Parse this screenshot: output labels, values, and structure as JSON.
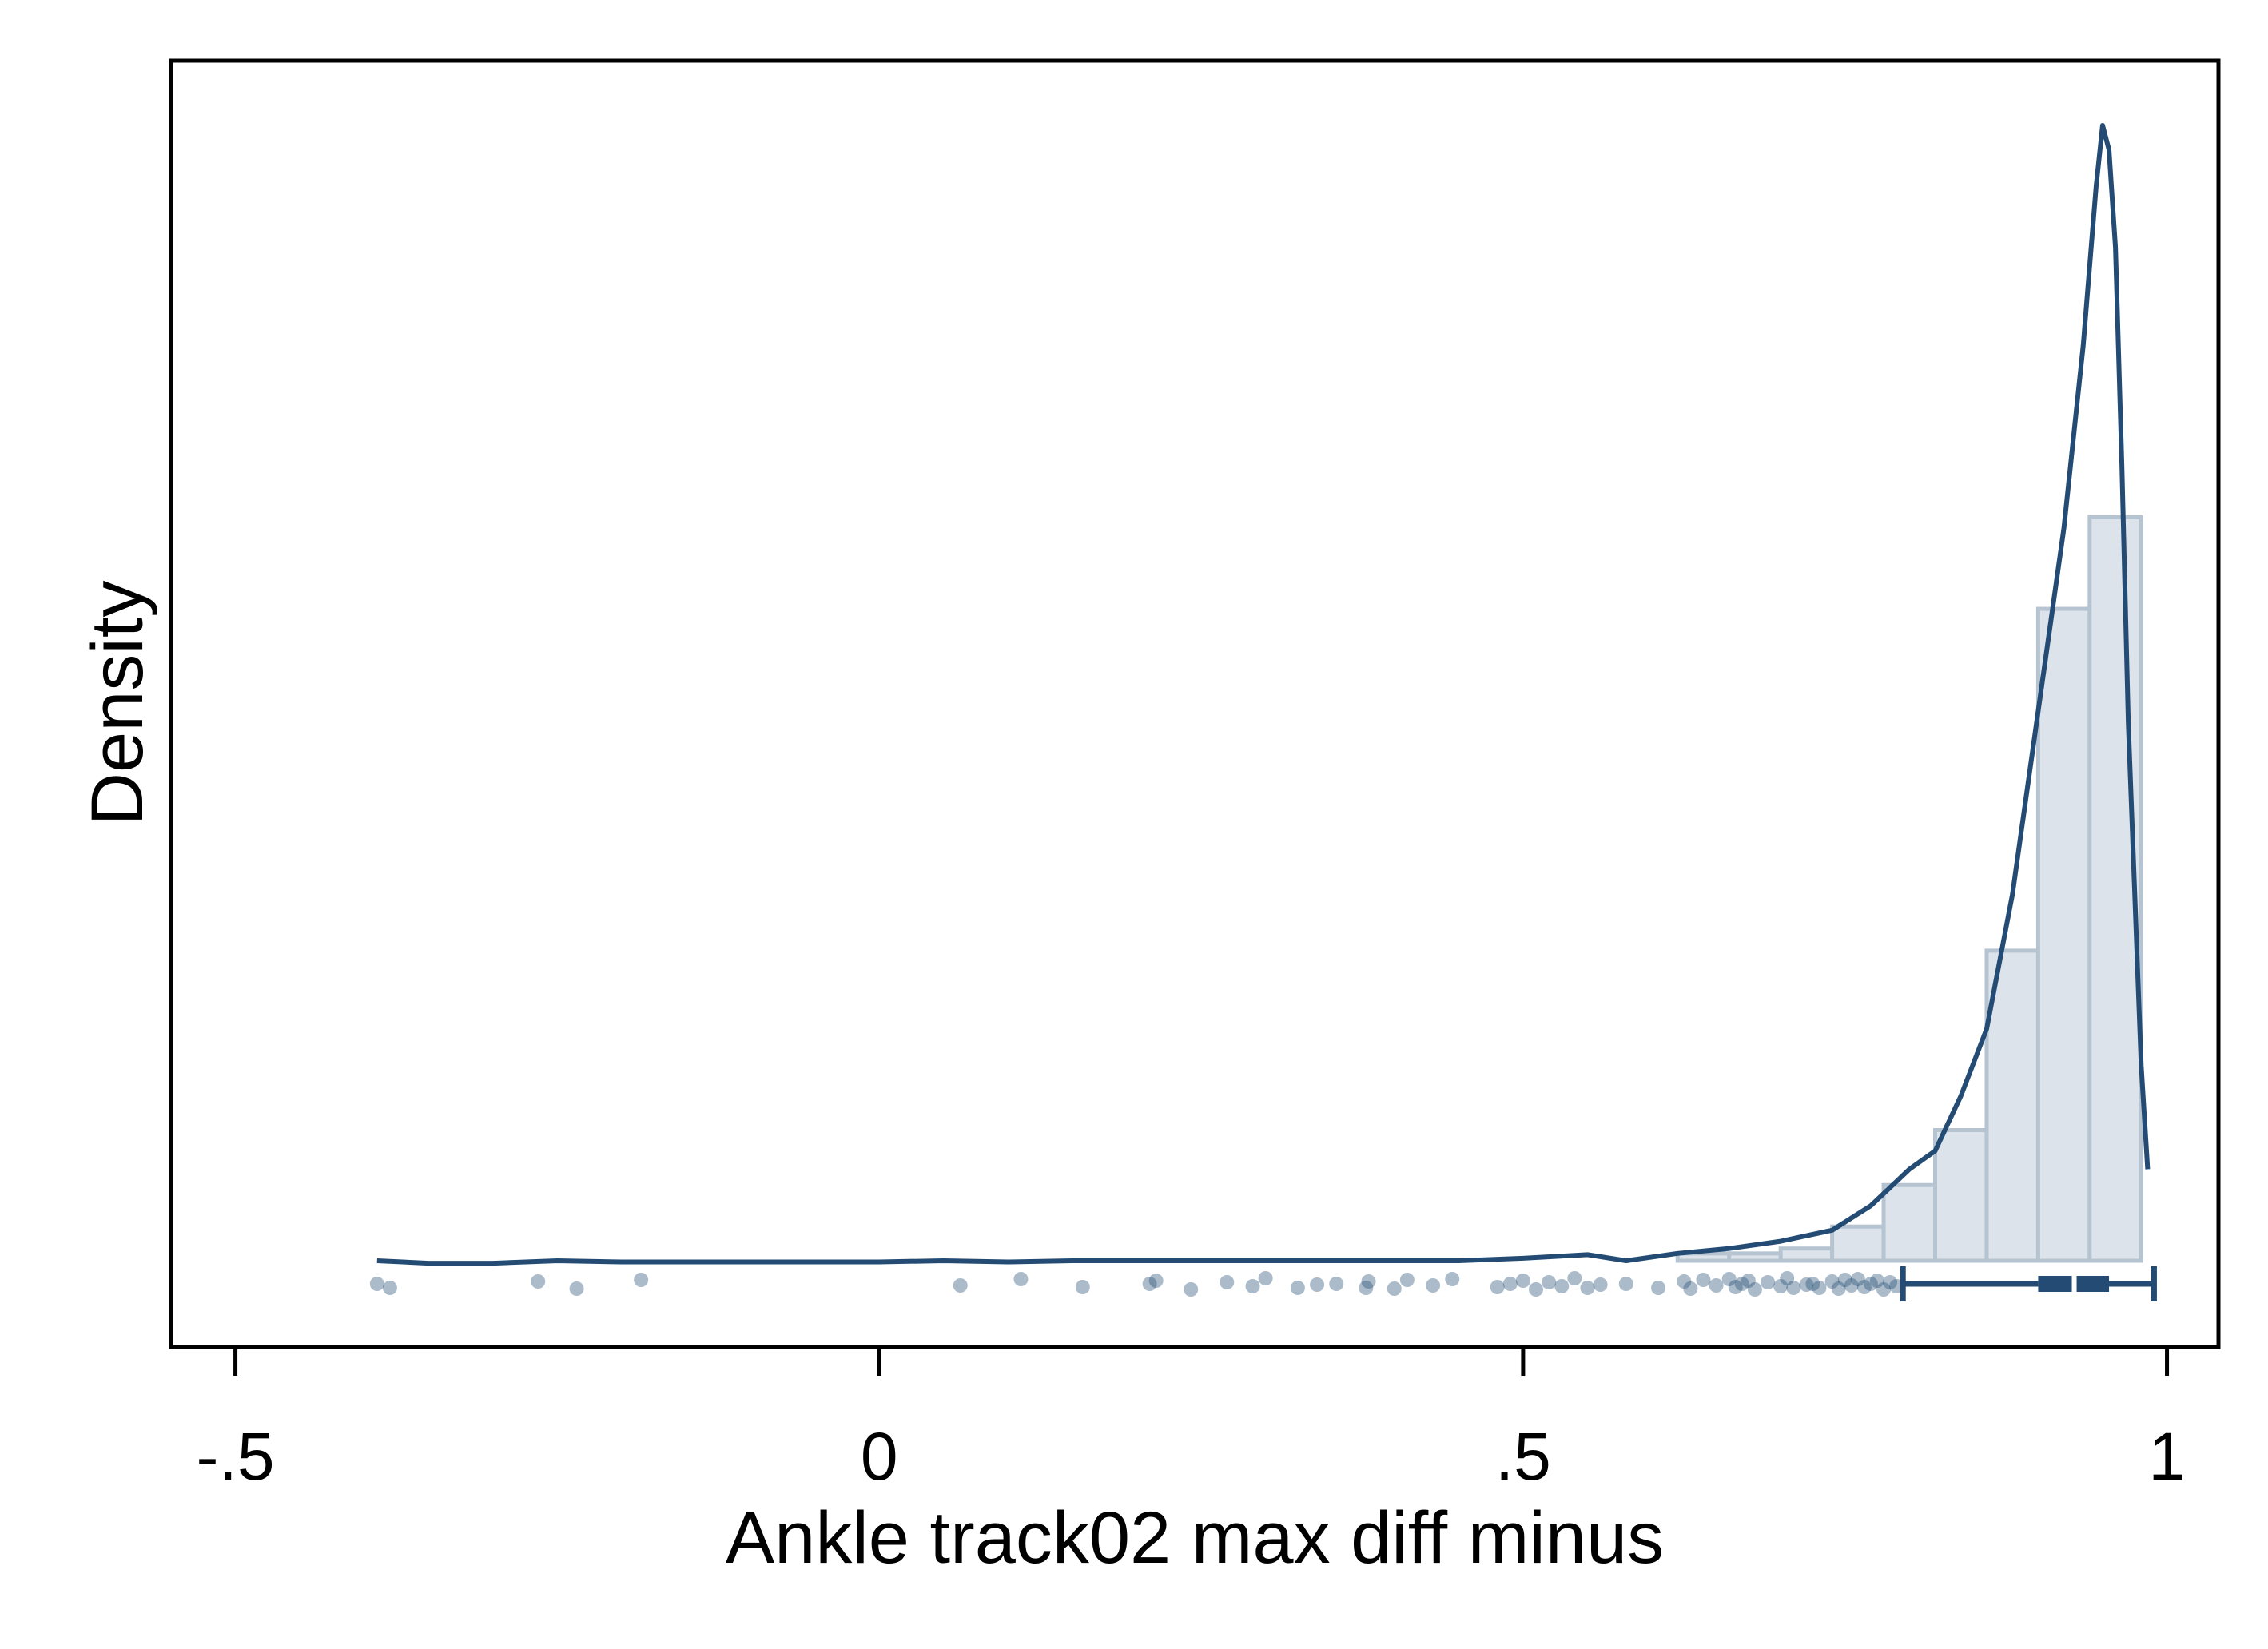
{
  "chart_data": {
    "type": "histogram",
    "xlabel": "Ankle track02 max diff minus",
    "ylabel": "Density",
    "xlim": [
      -0.55,
      1.04
    ],
    "ylim": [
      0,
      10
    ],
    "xticks": [
      {
        "value": -0.5,
        "label": "-.5"
      },
      {
        "value": 0,
        "label": "0"
      },
      {
        "value": 0.5,
        "label": ".5"
      },
      {
        "value": 1,
        "label": "1"
      }
    ],
    "y_axis_labels_shown": false,
    "grid": false,
    "legend": "none",
    "colors": {
      "line": "#234b73",
      "bar_fill": "#dce3ea",
      "bar_edge": "#b6c4d2",
      "point": "#234b73"
    },
    "histogram": {
      "bin_width": 0.04,
      "bins": [
        {
          "x0": 0.62,
          "x1": 0.66,
          "density": 0.06
        },
        {
          "x0": 0.66,
          "x1": 0.7,
          "density": 0.06
        },
        {
          "x0": 0.7,
          "x1": 0.74,
          "density": 0.1
        },
        {
          "x0": 0.74,
          "x1": 0.78,
          "density": 0.28
        },
        {
          "x0": 0.78,
          "x1": 0.82,
          "density": 0.62
        },
        {
          "x0": 0.82,
          "x1": 0.86,
          "density": 1.07
        },
        {
          "x0": 0.86,
          "x1": 0.9,
          "density": 2.54
        },
        {
          "x0": 0.9,
          "x1": 0.94,
          "density": 5.34
        },
        {
          "x0": 0.94,
          "x1": 0.98,
          "density": 6.09
        }
      ]
    },
    "kde": {
      "x": [
        -0.39,
        -0.35,
        -0.3,
        -0.25,
        -0.2,
        -0.1,
        0,
        0.05,
        0.1,
        0.15,
        0.2,
        0.25,
        0.3,
        0.35,
        0.4,
        0.45,
        0.5,
        0.55,
        0.58,
        0.62,
        0.66,
        0.7,
        0.74,
        0.77,
        0.8,
        0.82,
        0.84,
        0.86,
        0.88,
        0.9,
        0.92,
        0.935,
        0.945,
        0.95,
        0.955,
        0.96,
        0.965,
        0.97,
        0.98,
        0.985
      ],
      "y": [
        0.0,
        -0.02,
        -0.02,
        0.0,
        -0.01,
        -0.01,
        -0.01,
        0.0,
        -0.01,
        0.0,
        0.0,
        0.0,
        0.0,
        0.0,
        0.0,
        0.0,
        0.02,
        0.05,
        0.0,
        0.06,
        0.1,
        0.16,
        0.25,
        0.45,
        0.75,
        0.9,
        1.35,
        1.9,
        3.0,
        4.5,
        6.0,
        7.5,
        8.8,
        9.3,
        9.1,
        8.3,
        6.5,
        4.4,
        1.6,
        0.75
      ]
    },
    "box": {
      "whisker_low": 0.795,
      "q1": 0.9,
      "median": 0.928,
      "q3": 0.955,
      "whisker_high": 0.99
    },
    "points": [
      -0.39,
      -0.38,
      -0.265,
      -0.235,
      -0.185,
      0.063,
      0.11,
      0.158,
      0.21,
      0.215,
      0.242,
      0.27,
      0.29,
      0.3,
      0.325,
      0.34,
      0.355,
      0.378,
      0.38,
      0.4,
      0.41,
      0.43,
      0.445,
      0.48,
      0.49,
      0.5,
      0.51,
      0.52,
      0.53,
      0.54,
      0.55,
      0.56,
      0.58,
      0.605,
      0.625,
      0.63,
      0.64,
      0.65,
      0.66,
      0.665,
      0.67,
      0.675,
      0.68,
      0.69,
      0.7,
      0.705,
      0.71,
      0.72,
      0.725,
      0.73,
      0.74,
      0.745,
      0.75,
      0.755,
      0.76,
      0.765,
      0.77,
      0.775,
      0.78,
      0.785,
      0.79
    ]
  }
}
